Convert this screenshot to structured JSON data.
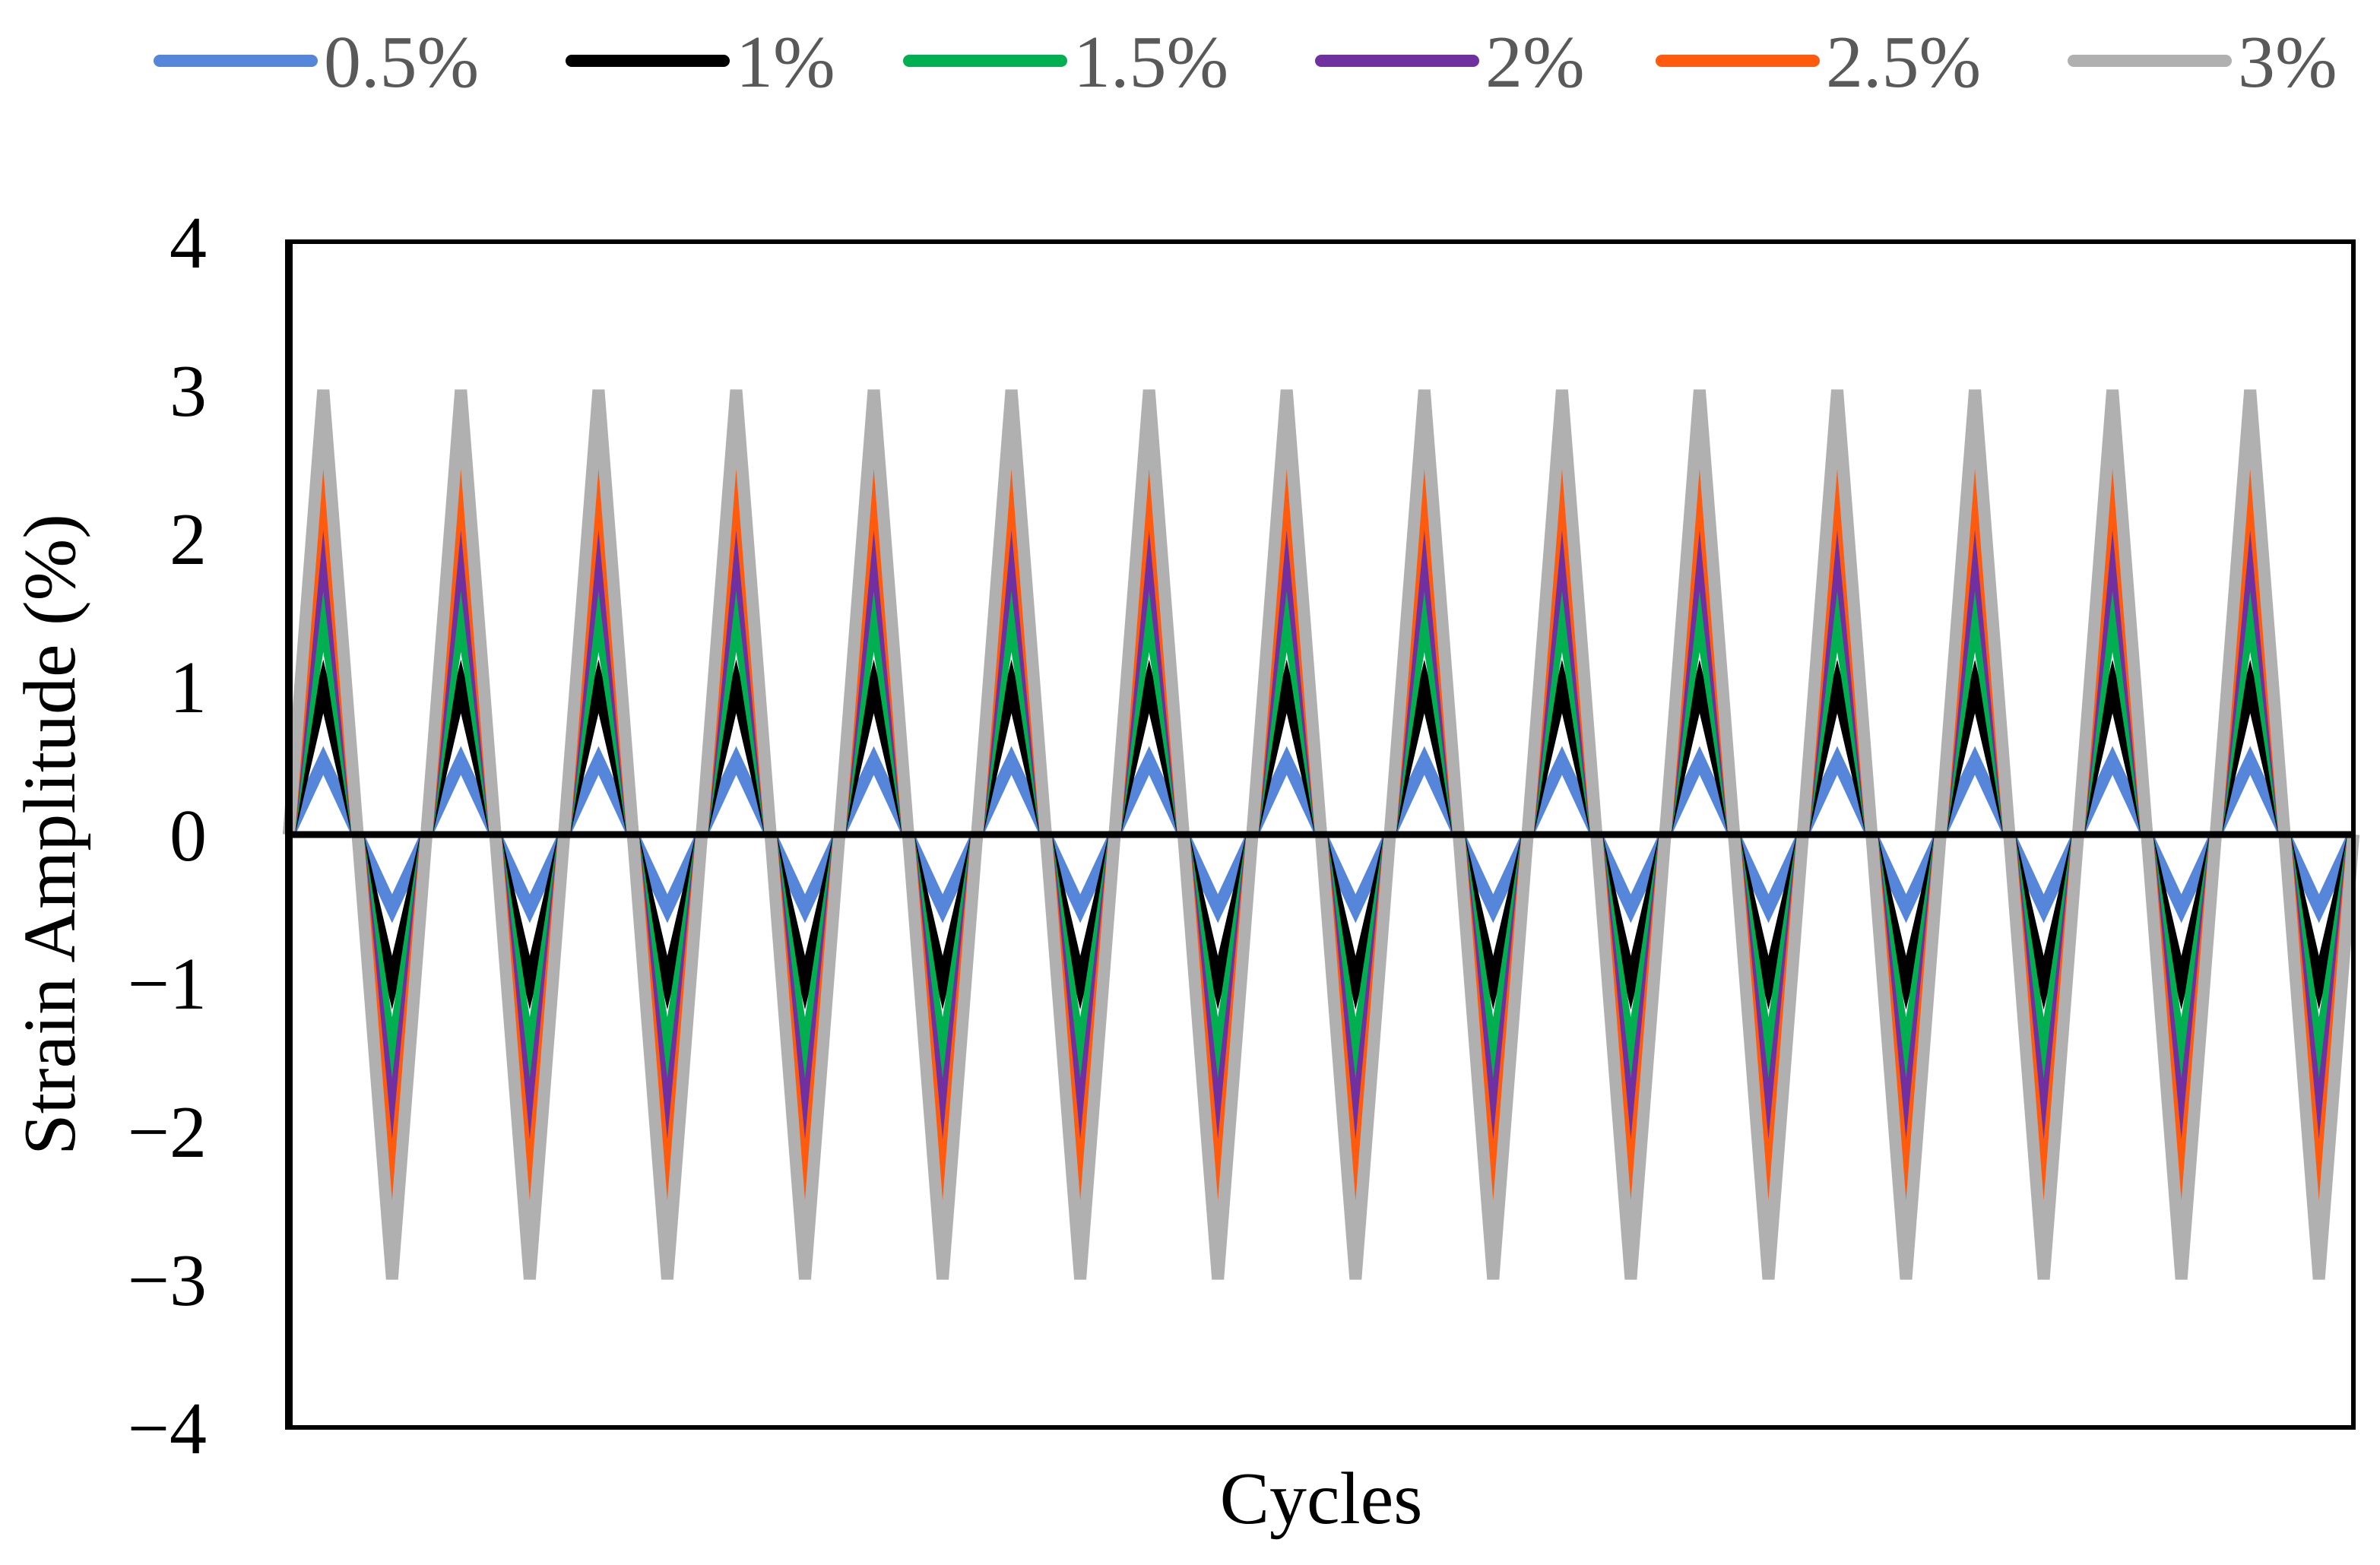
{
  "chart_data": {
    "type": "line",
    "title": "",
    "xlabel": "Cycles",
    "ylabel": "Strain Amplitude (%)",
    "ylim": [
      -4,
      4
    ],
    "xlim": [
      0,
      15
    ],
    "yticks": [
      "4",
      "3",
      "2",
      "1",
      "0",
      "−1",
      "−2",
      "−3",
      "−4"
    ],
    "ytick_values": [
      4,
      3,
      2,
      1,
      0,
      -1,
      -2,
      -3,
      -4
    ],
    "x_ticks_shown": false,
    "grid": false,
    "legend_position": "top",
    "cycles": 15,
    "waveform": "triangular",
    "series": [
      {
        "name": "0.5%",
        "amplitude": 0.5,
        "color": "#5586d9"
      },
      {
        "name": "1%",
        "amplitude": 1.0,
        "color": "#000000"
      },
      {
        "name": "1.5%",
        "amplitude": 1.5,
        "color": "#00b050"
      },
      {
        "name": "2%",
        "amplitude": 2.0,
        "color": "#7030a0"
      },
      {
        "name": "2.5%",
        "amplitude": 2.5,
        "color": "#ff5b0f"
      },
      {
        "name": "3%",
        "amplitude": 3.0,
        "color": "#b0b0b0"
      }
    ]
  }
}
